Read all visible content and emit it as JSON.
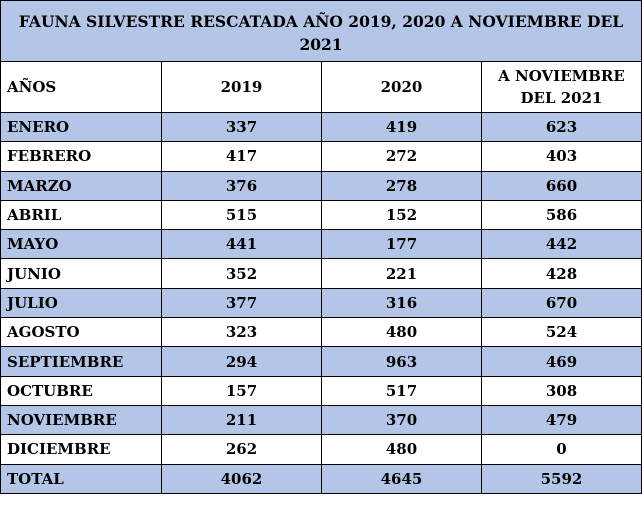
{
  "title": "FAUNA SILVESTRE RESCATADA AÑO 2019, 2020 A NOVIEMBRE DEL 2021",
  "header": {
    "label": "AÑOS",
    "col1": "2019",
    "col2": "2020",
    "col3": "A NOVIEMBRE DEL 2021"
  },
  "rows": [
    {
      "month": "ENERO",
      "v2019": "337",
      "v2020": "419",
      "v2021": "623"
    },
    {
      "month": "FEBRERO",
      "v2019": "417",
      "v2020": "272",
      "v2021": "403"
    },
    {
      "month": "MARZO",
      "v2019": "376",
      "v2020": "278",
      "v2021": "660"
    },
    {
      "month": "ABRIL",
      "v2019": "515",
      "v2020": "152",
      "v2021": "586"
    },
    {
      "month": "MAYO",
      "v2019": "441",
      "v2020": "177",
      "v2021": "442"
    },
    {
      "month": "JUNIO",
      "v2019": "352",
      "v2020": "221",
      "v2021": "428"
    },
    {
      "month": "JULIO",
      "v2019": "377",
      "v2020": "316",
      "v2021": "670"
    },
    {
      "month": "AGOSTO",
      "v2019": "323",
      "v2020": "480",
      "v2021": "524"
    },
    {
      "month": "SEPTIEMBRE",
      "v2019": "294",
      "v2020": "963",
      "v2021": "469"
    },
    {
      "month": "OCTUBRE",
      "v2019": "157",
      "v2020": "517",
      "v2021": "308"
    },
    {
      "month": "NOVIEMBRE",
      "v2019": "211",
      "v2020": "370",
      "v2021": "479"
    },
    {
      "month": "DICIEMBRE",
      "v2019": "262",
      "v2020": "480",
      "v2021": "0"
    }
  ],
  "total": {
    "label": "TOTAL",
    "v2019": "4062",
    "v2020": "4645",
    "v2021": "5592"
  },
  "colors": {
    "shade": "#b4c6e7",
    "plain": "#ffffff",
    "border": "#000000"
  }
}
